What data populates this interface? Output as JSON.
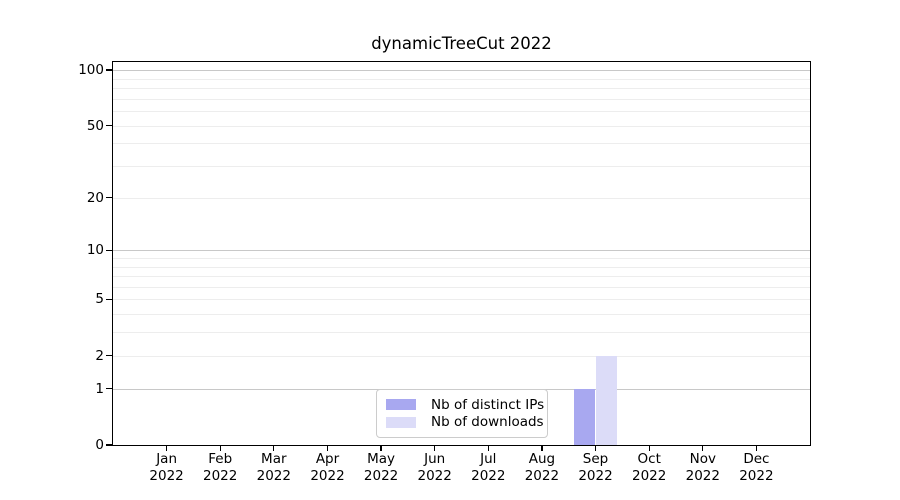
{
  "title": "dynamicTreeCut 2022",
  "chart_data": {
    "type": "bar",
    "title": "dynamicTreeCut 2022",
    "months": [
      "Jan",
      "Feb",
      "Mar",
      "Apr",
      "May",
      "Jun",
      "Jul",
      "Aug",
      "Sep",
      "Oct",
      "Nov",
      "Dec"
    ],
    "year": "2022",
    "categories": [
      "Jan 2022",
      "Feb 2022",
      "Mar 2022",
      "Apr 2022",
      "May 2022",
      "Jun 2022",
      "Jul 2022",
      "Aug 2022",
      "Sep 2022",
      "Oct 2022",
      "Nov 2022",
      "Dec 2022"
    ],
    "series": [
      {
        "name": "Nb of distinct IPs",
        "color": "#a8a8f0",
        "values": [
          0,
          0,
          0,
          0,
          0,
          0,
          0,
          0,
          1,
          0,
          0,
          0
        ]
      },
      {
        "name": "Nb of downloads",
        "color": "#dcdcf8",
        "values": [
          0,
          0,
          0,
          0,
          0,
          0,
          0,
          0,
          2,
          0,
          0,
          0
        ]
      }
    ],
    "y_ticks": [
      0,
      1,
      2,
      5,
      10,
      20,
      50,
      100
    ],
    "y_scale": "log10(1+y)",
    "ylim": [
      0,
      110
    ],
    "xlabel": "",
    "ylabel": "",
    "grid": {
      "major_values": [
        1,
        10,
        100
      ],
      "minor_values": [
        2,
        3,
        4,
        5,
        6,
        7,
        8,
        9,
        20,
        30,
        40,
        50,
        60,
        70,
        80,
        90
      ],
      "major_color": "#c8c8c8",
      "minor_color": "#ededed"
    },
    "legend": {
      "entries": [
        "Nb of distinct IPs",
        "Nb of downloads"
      ],
      "position": "lower center inside"
    }
  }
}
